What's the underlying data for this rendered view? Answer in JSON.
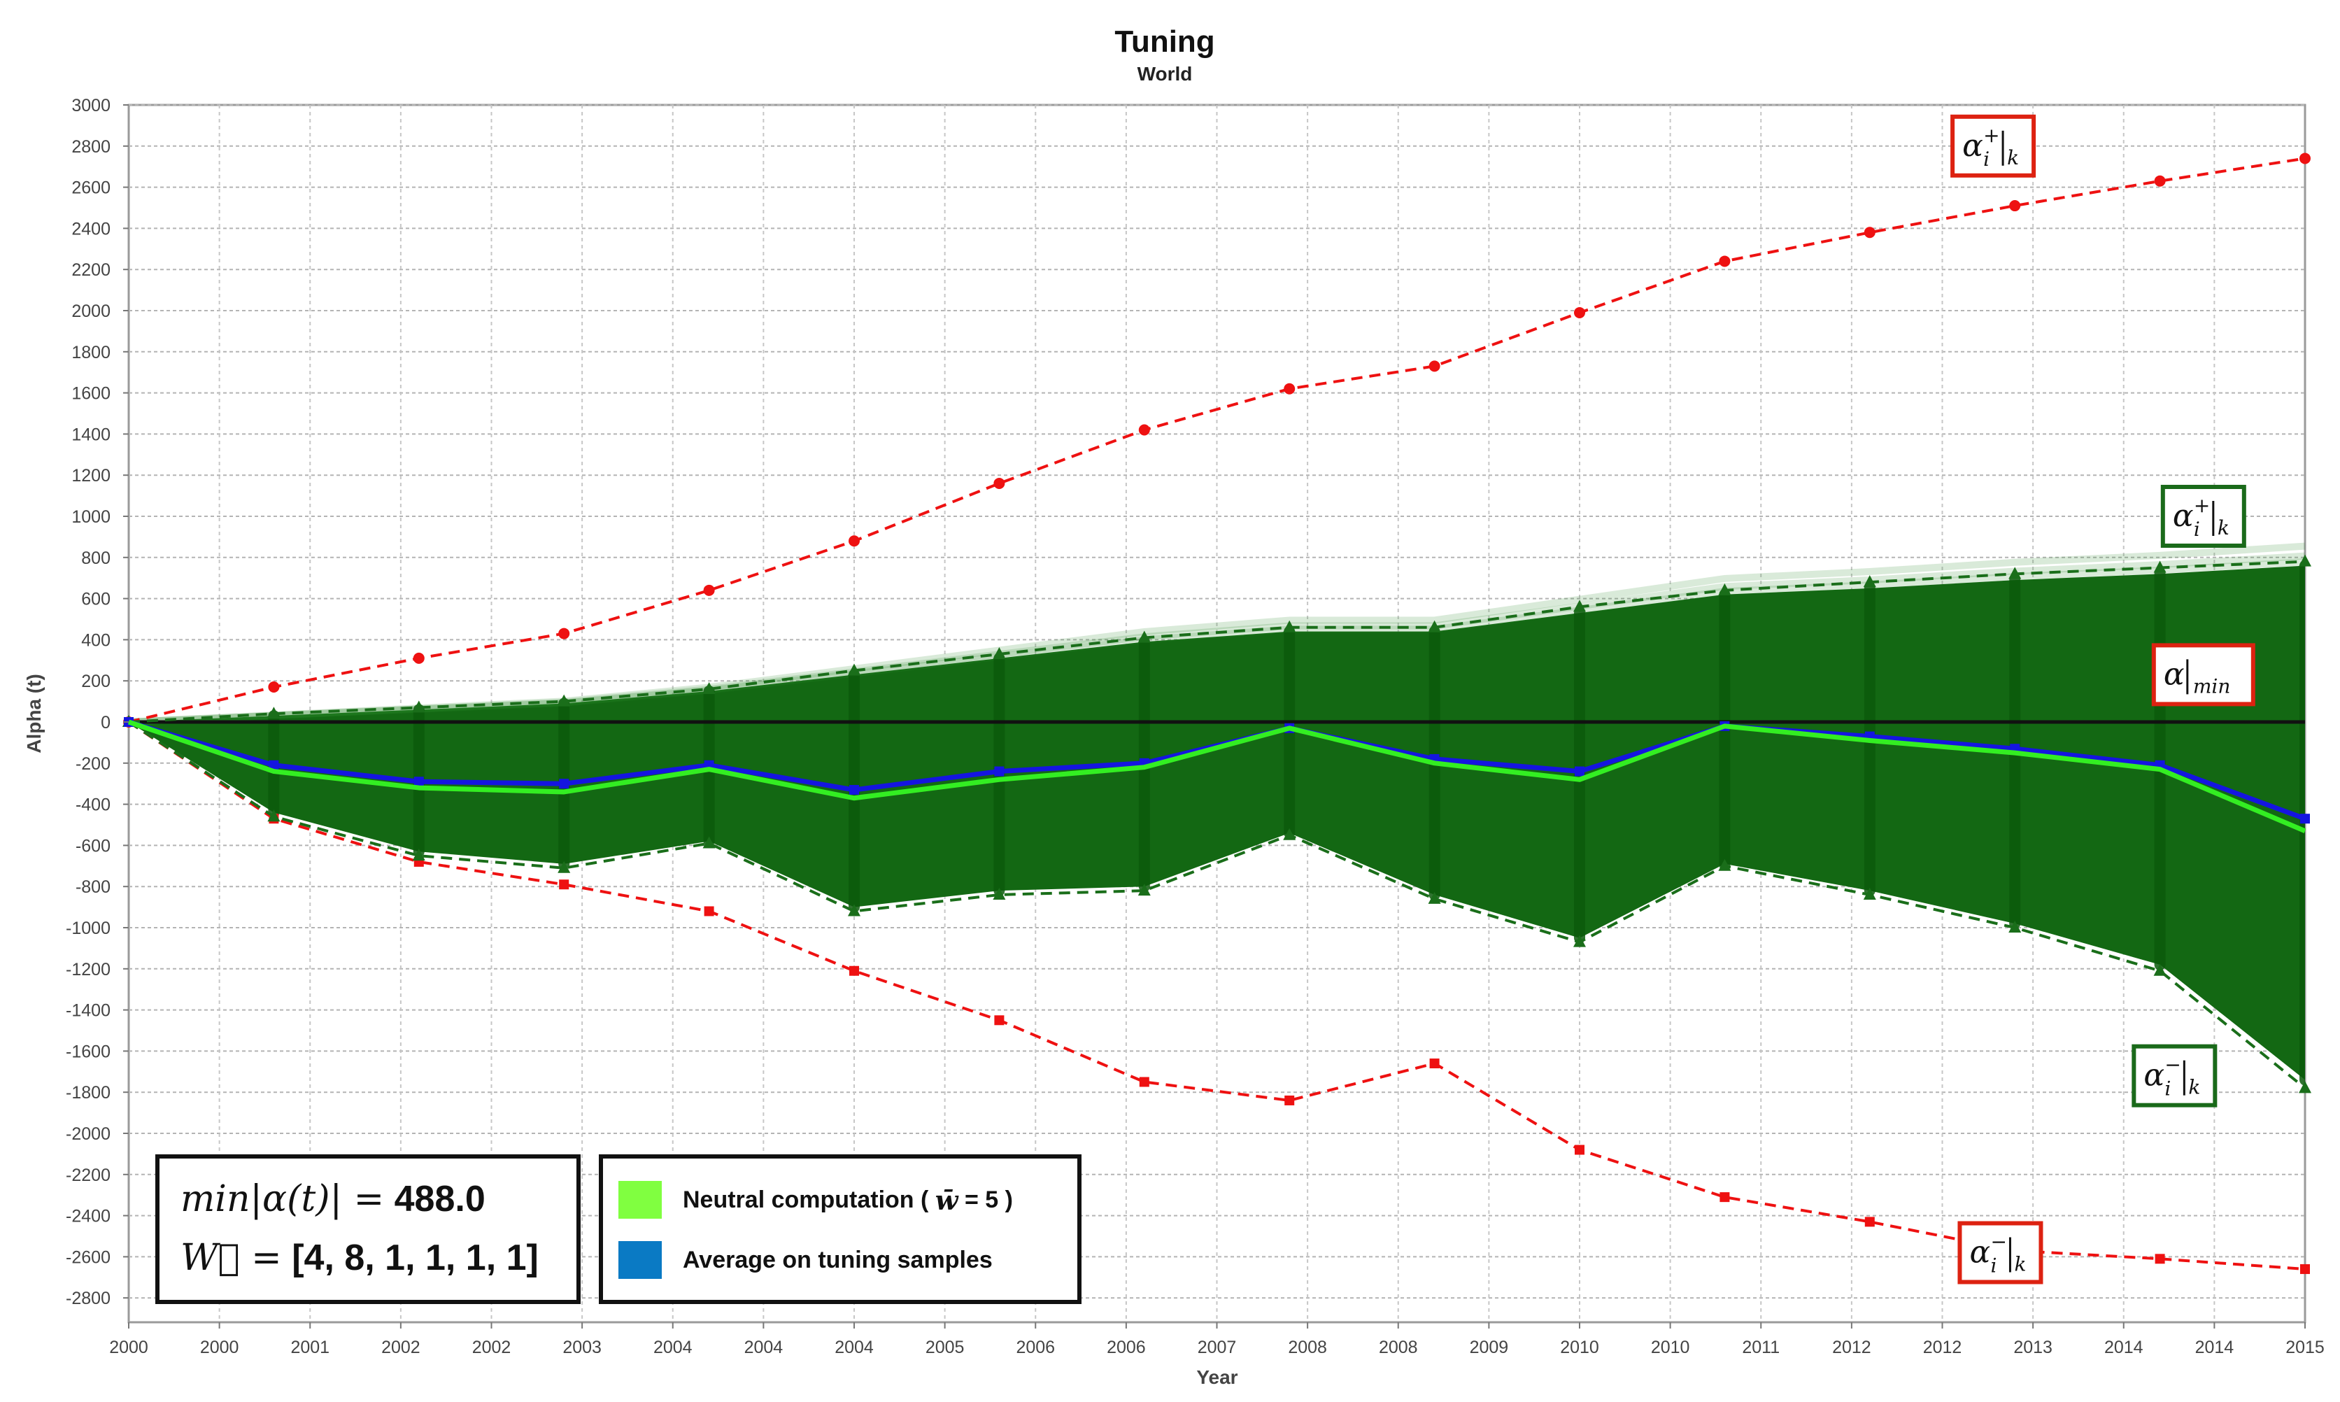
{
  "chart_data": {
    "type": "line",
    "title": "Tuning",
    "subtitle": "World",
    "xlabel": "Year",
    "ylabel": "Alpha (t)",
    "ylim": [
      -2900,
      3000
    ],
    "yticks": [
      3000,
      2800,
      2600,
      2400,
      2200,
      2000,
      1800,
      1600,
      1400,
      1200,
      1000,
      800,
      600,
      400,
      200,
      0,
      -200,
      -400,
      -600,
      -800,
      -1000,
      -1200,
      -1400,
      -1600,
      -1800,
      -2000,
      -2200,
      -2400,
      -2600,
      -2800
    ],
    "xlim": [
      2000,
      2015
    ],
    "xtick_labels": [
      "2000",
      "2000",
      "2001",
      "2002",
      "2002",
      "2003",
      "2004",
      "2004",
      "2004",
      "2005",
      "2006",
      "2006",
      "2007",
      "2008",
      "2008",
      "2009",
      "2010",
      "2010",
      "2011",
      "2012",
      "2012",
      "2013",
      "2014",
      "2014",
      "2015"
    ],
    "x": [
      2000,
      2001,
      2002,
      2003,
      2004,
      2005,
      2006,
      2007,
      2008,
      2009,
      2010,
      2011,
      2012,
      2013,
      2014,
      2015
    ],
    "series": [
      {
        "name": "red_upper",
        "color": "#ee1111",
        "style": "dashed",
        "marker": "circle",
        "values": [
          0,
          170,
          310,
          430,
          640,
          880,
          1160,
          1420,
          1620,
          1730,
          1990,
          2240,
          2380,
          2510,
          2630,
          2740
        ]
      },
      {
        "name": "red_lower",
        "color": "#ee1111",
        "style": "dashed",
        "marker": "square",
        "values": [
          0,
          -470,
          -680,
          -790,
          -920,
          -1210,
          -1450,
          -1750,
          -1840,
          -1660,
          -2080,
          -2310,
          -2430,
          -2570,
          -2610,
          -2660
        ]
      },
      {
        "name": "green_upper",
        "color": "#1a6e1a",
        "style": "dashed",
        "marker": "triangle",
        "values": [
          0,
          40,
          70,
          100,
          160,
          250,
          330,
          410,
          460,
          460,
          560,
          640,
          680,
          720,
          750,
          780
        ]
      },
      {
        "name": "green_lower",
        "color": "#1a6e1a",
        "style": "dashed",
        "marker": "triangle",
        "values": [
          0,
          -460,
          -650,
          -710,
          -590,
          -920,
          -840,
          -820,
          -550,
          -860,
          -1070,
          -700,
          -840,
          -1000,
          -1210,
          -1780
        ]
      },
      {
        "name": "Average on tuning samples",
        "color": "#1515e0",
        "style": "solid",
        "marker": "square",
        "values": [
          0,
          -210,
          -290,
          -300,
          -210,
          -330,
          -240,
          -200,
          -30,
          -180,
          -240,
          -20,
          -70,
          -130,
          -210,
          -470
        ]
      },
      {
        "name": "Neutral computation",
        "color": "#33ee22",
        "style": "solid",
        "marker": "none",
        "values": [
          0,
          -240,
          -320,
          -340,
          -230,
          -370,
          -280,
          -220,
          -30,
          -200,
          -280,
          -20,
          -90,
          -150,
          -230,
          -530
        ]
      }
    ],
    "band": {
      "name": "tuning samples envelope",
      "color": "#136813",
      "upper": [
        0,
        30,
        60,
        90,
        150,
        230,
        310,
        390,
        440,
        440,
        530,
        620,
        650,
        690,
        720,
        760
      ],
      "lower": [
        0,
        -440,
        -630,
        -690,
        -580,
        -900,
        -820,
        -800,
        -540,
        -840,
        -1050,
        -690,
        -820,
        -980,
        -1180,
        -1740
      ]
    },
    "zero_line": 0,
    "annotations": [
      {
        "id": "red-upper",
        "main": "α",
        "sup": "+",
        "sub": "i",
        "tail": "k",
        "color": "#dd2211",
        "x": 2012.85,
        "y": 2800
      },
      {
        "id": "green-upper",
        "main": "α",
        "sup": "+",
        "sub": "i",
        "tail": "k",
        "color": "#1a6a1a",
        "x": 2014.3,
        "y": 1000
      },
      {
        "id": "alpha-min",
        "main": "α",
        "tail": "min",
        "color": "#dd2211",
        "x": 2014.3,
        "y": 230
      },
      {
        "id": "green-lower",
        "main": "α",
        "sup": "−",
        "sub": "i",
        "tail": "k",
        "color": "#1a6a1a",
        "x": 2014.1,
        "y": -1720
      },
      {
        "id": "red-lower",
        "main": "α",
        "sup": "−",
        "sub": "i",
        "tail": "k",
        "color": "#dd2211",
        "x": 2012.9,
        "y": -2580
      }
    ],
    "legend": [
      {
        "label": "Neutral computation (",
        "math": "w̄",
        "suffix": "= 5 )",
        "color": "#80ff40"
      },
      {
        "label": "Average on tuning samples",
        "color": "#0a7ac4"
      }
    ]
  },
  "stats": {
    "min_expr": "min|α(t)| =",
    "min_value": "488.0",
    "w_expr": "W⃗ =",
    "w_value": "[4, 8, 1, 1, 1, 1]"
  }
}
